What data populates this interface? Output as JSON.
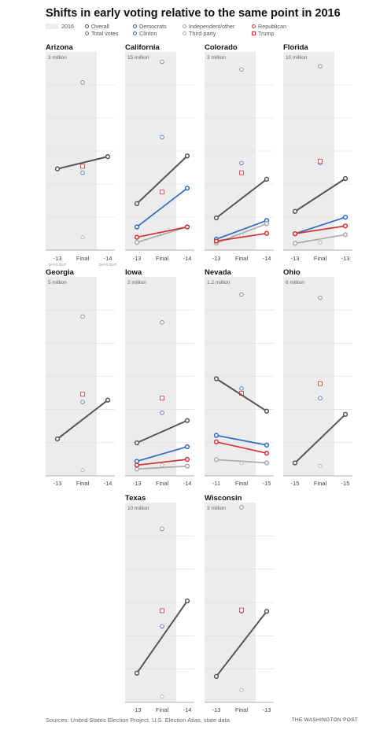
{
  "title": "Shifts in early voting relative to the same point in 2016",
  "legend": {
    "shade": "2016",
    "overall": "Overall",
    "total_votes": "Total votes",
    "democrats": "Democrats",
    "clinton": "Clinton",
    "independent": "Independent/other",
    "third_party": "Third party",
    "republican": "Republican",
    "trump": "Trump"
  },
  "days_out_label": "DAYS OUT",
  "colors": {
    "overall": "#555555",
    "democrats": "#2e6bc4",
    "independent": "#aaaaaa",
    "republican": "#d33333",
    "shade": "#ececec"
  },
  "footer": {
    "source": "Sources: United States Election Project, U.S. Election Atlas, state data",
    "credit": "THE WASHINGTON POST"
  },
  "chart_data": [
    {
      "type": "line",
      "state": "Arizona",
      "scale_label": "3 million",
      "ymax": 3,
      "x_labels": [
        "-13",
        "Final",
        "-14"
      ],
      "days_out": true,
      "series": [
        {
          "name": "Overall",
          "values": [
            1.26,
            1.45
          ]
        }
      ],
      "final_2016": {
        "total_votes": 2.6,
        "clinton": 1.2,
        "trump": 1.3,
        "third_party": 0.2
      }
    },
    {
      "type": "line",
      "state": "California",
      "scale_label": "15 million",
      "ymax": 15,
      "x_labels": [
        "-13",
        "Final",
        "-14"
      ],
      "series": [
        {
          "name": "Overall",
          "values": [
            3.6,
            7.3
          ]
        },
        {
          "name": "Democrats",
          "values": [
            1.8,
            4.8
          ]
        },
        {
          "name": "Independent/other",
          "values": [
            0.6,
            1.8
          ]
        },
        {
          "name": "Republican",
          "values": [
            1.0,
            1.8
          ]
        }
      ],
      "final_2016": {
        "total_votes": 14.6,
        "clinton": 8.75,
        "trump": 4.5,
        "third_party": 1.3
      }
    },
    {
      "type": "line",
      "state": "Colorado",
      "scale_label": "3 million",
      "ymax": 3,
      "x_labels": [
        "-13",
        "Final",
        "-14"
      ],
      "series": [
        {
          "name": "Overall",
          "values": [
            0.5,
            1.1
          ]
        },
        {
          "name": "Democrats",
          "values": [
            0.17,
            0.46
          ]
        },
        {
          "name": "Independent/other",
          "values": [
            0.11,
            0.41
          ]
        },
        {
          "name": "Republican",
          "values": [
            0.14,
            0.26
          ]
        }
      ],
      "final_2016": {
        "total_votes": 2.8,
        "clinton": 1.35,
        "trump": 1.2,
        "third_party": 0.23
      }
    },
    {
      "type": "line",
      "state": "Florida",
      "scale_label": "10 million",
      "ymax": 10,
      "x_labels": [
        "-13",
        "Final",
        "-13"
      ],
      "series": [
        {
          "name": "Overall",
          "values": [
            2.0,
            3.7
          ]
        },
        {
          "name": "Democrats",
          "values": [
            0.85,
            1.7
          ]
        },
        {
          "name": "Independent/other",
          "values": [
            0.35,
            0.8
          ]
        },
        {
          "name": "Republican",
          "values": [
            0.85,
            1.25
          ]
        }
      ],
      "final_2016": {
        "total_votes": 9.5,
        "clinton": 4.5,
        "trump": 4.6,
        "third_party": 0.4
      }
    },
    {
      "type": "line",
      "state": "Georgia",
      "scale_label": "5 million",
      "ymax": 5,
      "x_labels": [
        "-13",
        "Final",
        "-14"
      ],
      "series": [
        {
          "name": "Overall",
          "values": [
            0.95,
            1.95
          ]
        }
      ],
      "final_2016": {
        "total_votes": 4.1,
        "clinton": 1.9,
        "trump": 2.1,
        "third_party": 0.15
      }
    },
    {
      "type": "line",
      "state": "Iowa",
      "scale_label": "2 million",
      "ymax": 2,
      "x_labels": [
        "-13",
        "Final",
        "-14"
      ],
      "series": [
        {
          "name": "Overall",
          "values": [
            0.34,
            0.57
          ]
        },
        {
          "name": "Democrats",
          "values": [
            0.15,
            0.3
          ]
        },
        {
          "name": "Independent/other",
          "values": [
            0.07,
            0.1
          ]
        },
        {
          "name": "Republican",
          "values": [
            0.11,
            0.17
          ]
        }
      ],
      "final_2016": {
        "total_votes": 1.58,
        "clinton": 0.65,
        "trump": 0.8,
        "third_party": 0.11
      }
    },
    {
      "type": "line",
      "state": "Nevada",
      "scale_label": "1.2 million",
      "ymax": 1.2,
      "x_labels": [
        "-11",
        "Final",
        "-15"
      ],
      "series": [
        {
          "name": "Overall",
          "values": [
            0.6,
            0.4
          ]
        },
        {
          "name": "Democrats",
          "values": [
            0.25,
            0.19
          ]
        },
        {
          "name": "Independent/other",
          "values": [
            0.1,
            0.08
          ]
        },
        {
          "name": "Republican",
          "values": [
            0.21,
            0.14
          ]
        }
      ],
      "final_2016": {
        "total_votes": 1.12,
        "clinton": 0.54,
        "trump": 0.51,
        "third_party": 0.08
      }
    },
    {
      "type": "line",
      "state": "Ohio",
      "scale_label": "6 million",
      "ymax": 6,
      "x_labels": [
        "-15",
        "Final",
        "-15"
      ],
      "series": [
        {
          "name": "Overall",
          "values": [
            0.4,
            1.9
          ]
        }
      ],
      "final_2016": {
        "total_votes": 5.5,
        "clinton": 2.4,
        "trump": 2.85,
        "third_party": 0.3
      }
    },
    {
      "type": "line",
      "state": "Texas",
      "scale_label": "10 million",
      "ymax": 10,
      "x_labels": [
        "-13",
        "Final",
        "-14"
      ],
      "series": [
        {
          "name": "Overall",
          "values": [
            1.5,
            5.2
          ]
        }
      ],
      "final_2016": {
        "total_votes": 8.9,
        "clinton": 3.9,
        "trump": 4.7,
        "third_party": 0.3
      }
    },
    {
      "type": "line",
      "state": "Wisconsin",
      "scale_label": "3 million",
      "ymax": 3,
      "x_labels": [
        "-13",
        "Final",
        "-13"
      ],
      "series": [
        {
          "name": "Overall",
          "values": [
            0.4,
            1.4
          ]
        }
      ],
      "final_2016": {
        "total_votes": 3.0,
        "clinton": 1.4,
        "trump": 1.42,
        "third_party": 0.19
      }
    }
  ]
}
